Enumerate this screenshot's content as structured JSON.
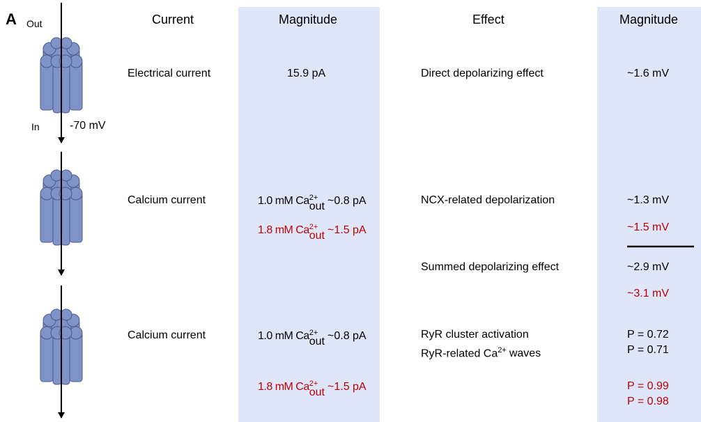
{
  "panel_label": "A",
  "channel_labels": {
    "out": "Out",
    "in": "In",
    "voltage": "-70 mV"
  },
  "headers": [
    "Current",
    "Magnitude",
    "Effect",
    "Magnitude"
  ],
  "rows": [
    {
      "current": "Electrical current",
      "magnitude": "15.9 pA",
      "effect": "Direct depolarizing effect",
      "effect_magnitude": "~1.6 mV"
    },
    {
      "current": "Calcium current",
      "conditions": [
        {
          "prefix": "1.0 mM Ca",
          "sup": "2+",
          "sub": "out",
          "value": "~0.8 pA"
        },
        {
          "prefix": "1.8 mM Ca",
          "sup": "2+",
          "sub": "out",
          "value": "~1.5 pA"
        }
      ],
      "effects": [
        "NCX-related depolarization",
        "Summed depolarizing effect"
      ],
      "effect_magnitudes": [
        [
          "~1.3 mV",
          "~1.5 mV"
        ],
        [
          "~2.9 mV",
          "~3.1 mV"
        ]
      ]
    },
    {
      "current": "Calcium current",
      "conditions": [
        {
          "prefix": "1.0 mM Ca",
          "sup": "2+",
          "sub": "out",
          "value": "~0.8 pA"
        },
        {
          "prefix": "1.8 mM Ca",
          "sup": "2+",
          "sub": "out",
          "value": "~1.5 pA"
        }
      ],
      "effects": [
        {
          "text": "RyR cluster activation"
        },
        {
          "prefix": "RyR-related Ca",
          "sup": "2+",
          "suffix": "waves"
        }
      ],
      "effect_magnitudes": [
        "P = 0.72",
        "P = 0.71",
        "P = 0.99",
        "P = 0.98"
      ]
    }
  ]
}
